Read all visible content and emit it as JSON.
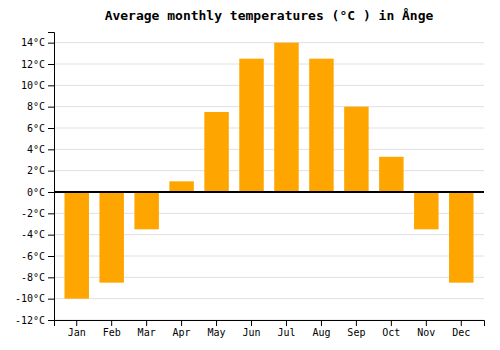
{
  "chart_data": {
    "type": "bar",
    "title": "Average monthly temperatures (°C ) in Ånge",
    "categories": [
      "Jan",
      "Feb",
      "Mar",
      "Apr",
      "May",
      "Jun",
      "Jul",
      "Aug",
      "Sep",
      "Oct",
      "Nov",
      "Dec"
    ],
    "values": [
      -10,
      -8.5,
      -3.5,
      1,
      7.5,
      12.5,
      14,
      12.5,
      8,
      3.3,
      -3.5,
      -8.5
    ],
    "color": "#FFA500",
    "ylim": [
      -12,
      15
    ],
    "yticks": [
      {
        "value": -12,
        "label": "-12°C"
      },
      {
        "value": -10,
        "label": "-10°C"
      },
      {
        "value": -8,
        "label": "-8°C"
      },
      {
        "value": -6,
        "label": "-6°C"
      },
      {
        "value": -4,
        "label": "-4°C"
      },
      {
        "value": -2,
        "label": "-2°C"
      },
      {
        "value": 0,
        "label": "0°C"
      },
      {
        "value": 2,
        "label": "2°C"
      },
      {
        "value": 4,
        "label": "4°C"
      },
      {
        "value": 6,
        "label": "6°C"
      },
      {
        "value": 8,
        "label": "8°C"
      },
      {
        "value": 10,
        "label": "10°C"
      },
      {
        "value": 12,
        "label": "12°C"
      },
      {
        "value": 14,
        "label": "14°C"
      }
    ],
    "grid": true
  }
}
